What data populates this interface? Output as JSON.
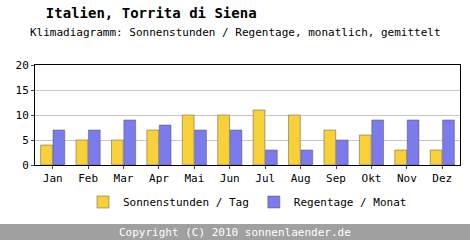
{
  "chart_data": {
    "type": "bar",
    "title": "Italien, Torrita di Siena",
    "subtitle": "Klimadiagramm: Sonnenstunden / Regentage, monatlich, gemittelt",
    "categories": [
      "Jan",
      "Feb",
      "Mar",
      "Apr",
      "Mai",
      "Jun",
      "Jul",
      "Aug",
      "Sep",
      "Okt",
      "Nov",
      "Dez"
    ],
    "series": [
      {
        "name": "Sonnenstunden / Tag",
        "color": "#f8d038",
        "values": [
          4,
          5,
          5,
          7,
          10,
          10,
          11,
          10,
          7,
          6,
          3,
          3
        ]
      },
      {
        "name": "Regentage / Monat",
        "color": "#7b7bee",
        "values": [
          7,
          7,
          9,
          8,
          7,
          7,
          3,
          3,
          5,
          9,
          9,
          9
        ]
      }
    ],
    "ylim": [
      0,
      20
    ],
    "yticks": [
      0,
      5,
      10,
      15,
      20
    ],
    "grid": true,
    "legend": "bottom",
    "annotations": [
      "Copyright (C) 2010 sonnenlaender.de"
    ]
  }
}
